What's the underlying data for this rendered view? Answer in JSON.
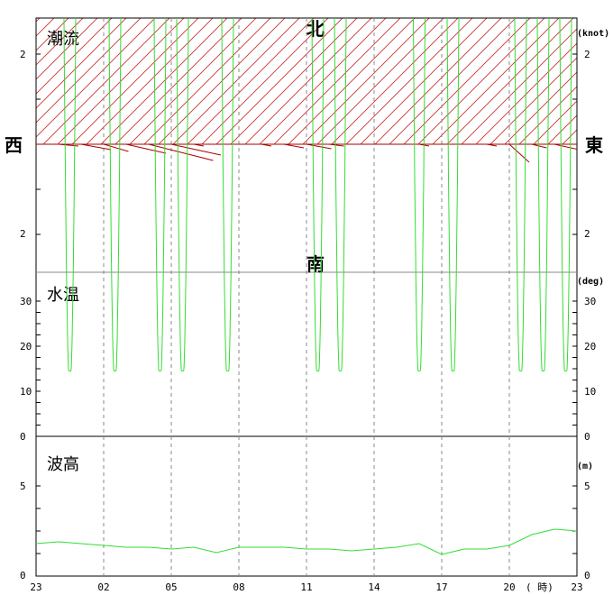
{
  "panels": {
    "current": {
      "title": "潮流",
      "unit": "(knot)",
      "ticks": [
        "2",
        "2"
      ],
      "directions": {
        "north": "北",
        "south": "南",
        "west": "西",
        "east": "東"
      }
    },
    "water_temp": {
      "title": "水温",
      "unit": "(deg)",
      "ticks": [
        "30",
        "20",
        "10",
        "0"
      ]
    },
    "wave_height": {
      "title": "波高",
      "unit": "(m)",
      "ticks": [
        "5",
        "0"
      ]
    }
  },
  "x_axis": {
    "labels": [
      "23",
      "02",
      "05",
      "08",
      "11",
      "14",
      "17",
      "20",
      "23"
    ],
    "unit_label": "( 時)"
  },
  "colors": {
    "temperature": "#33dd33",
    "wave": "#33dd33",
    "current": "#aa0000",
    "hatch": "#cc3333",
    "grid": "#888888"
  },
  "chart_data": [
    {
      "type": "line",
      "title": "潮流",
      "ylabel": "(knot)",
      "x_unit": "hour",
      "series": [
        {
          "x": [
            0,
            1,
            2,
            3,
            4,
            5,
            6,
            7,
            8,
            9,
            10,
            11,
            12,
            13,
            14,
            15,
            16,
            17,
            18,
            19,
            20,
            21,
            22,
            23,
            24
          ],
          "u": [
            0.1,
            0.4,
            0.6,
            0.5,
            0.8,
            1.3,
            1.0,
            0.2,
            -0.3,
            0.1,
            0.2,
            0.4,
            0.5,
            0.3,
            0.1,
            -0.1,
            0.0,
            0.2,
            0.1,
            0.0,
            0.2,
            0.4,
            0.3,
            0.5,
            0.4
          ],
          "v": [
            0.0,
            -0.02,
            -0.06,
            -0.08,
            -0.1,
            -0.18,
            -0.12,
            -0.02,
            0.0,
            0.0,
            -0.02,
            -0.04,
            -0.05,
            -0.02,
            0.0,
            0.0,
            0.0,
            -0.02,
            0.0,
            0.0,
            -0.02,
            -0.2,
            -0.04,
            -0.06,
            -0.04
          ]
        }
      ]
    },
    {
      "type": "line",
      "title": "水温",
      "ylabel": "(deg)",
      "ylim": [
        0,
        30
      ],
      "x_unit": "hour",
      "series": [
        {
          "dips": [
            1.5,
            3.5,
            5.5,
            6.5,
            8.5,
            12.5,
            13.5,
            17.0,
            18.5,
            21.5,
            22.5,
            23.5
          ],
          "min": 14.5
        }
      ]
    },
    {
      "type": "line",
      "title": "波高",
      "ylabel": "(m)",
      "ylim": [
        0,
        5
      ],
      "x_unit": "hour",
      "series": [
        {
          "x": [
            0,
            1,
            2,
            3,
            4,
            5,
            6,
            7,
            8,
            9,
            10,
            11,
            12,
            13,
            14,
            15,
            16,
            17,
            18,
            19,
            20,
            21,
            22,
            23,
            24
          ],
          "values": [
            1.8,
            1.9,
            1.8,
            1.7,
            1.6,
            1.6,
            1.5,
            1.6,
            1.3,
            1.6,
            1.6,
            1.6,
            1.5,
            1.5,
            1.4,
            1.5,
            1.6,
            1.8,
            1.2,
            1.5,
            1.5,
            1.7,
            2.3,
            2.6,
            2.5
          ]
        }
      ]
    }
  ]
}
